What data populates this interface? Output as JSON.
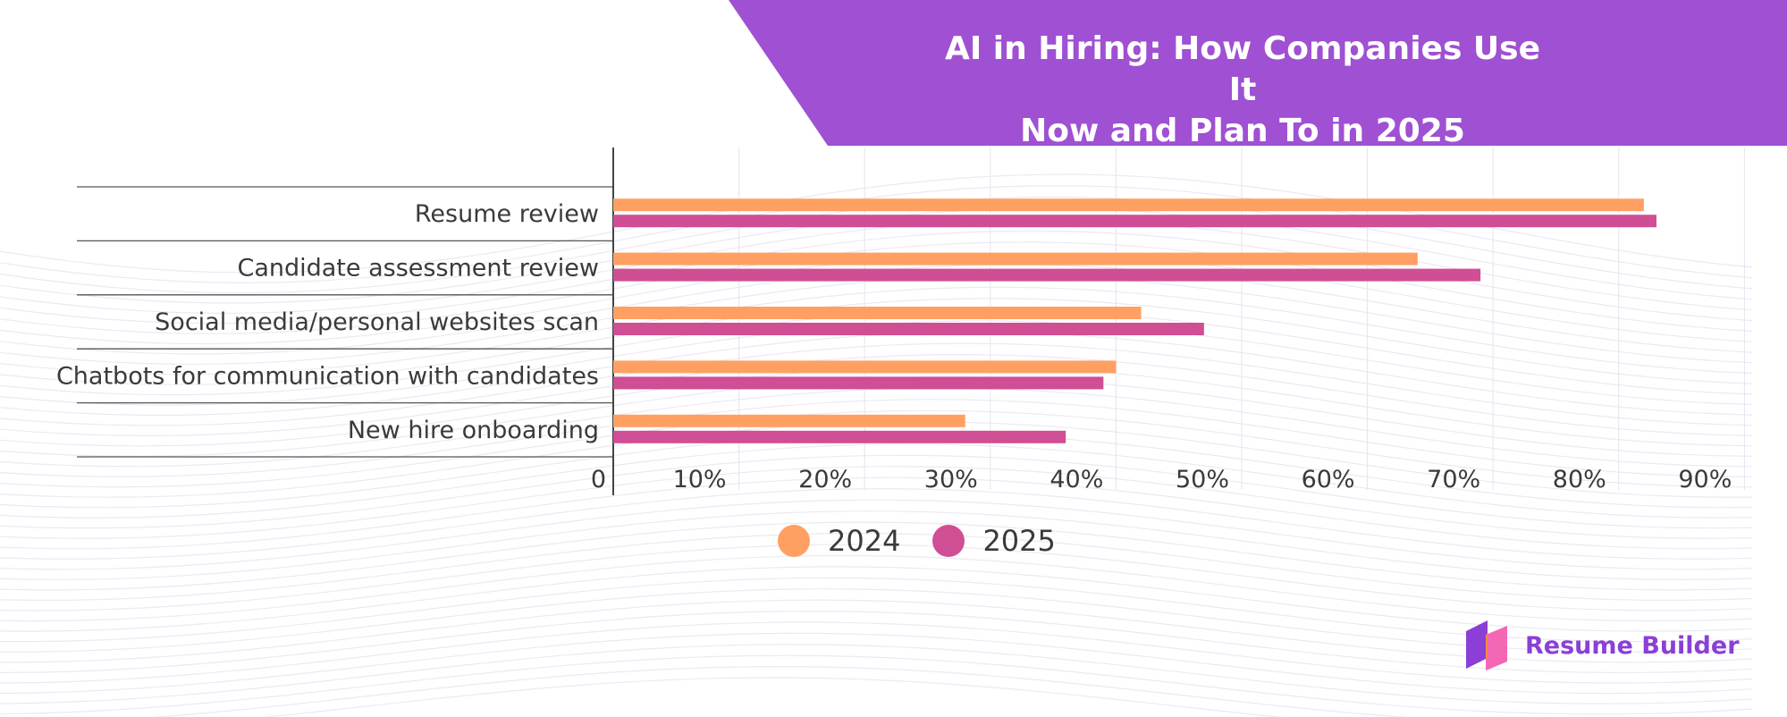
{
  "header": {
    "title_line1": "AI in Hiring: How Companies Use It",
    "title_line2": "Now and Plan To in 2025"
  },
  "colors": {
    "banner": "#9f50d3",
    "series_2024": "#ffa062",
    "series_2025": "#d04e93",
    "brand_text": "#8b3fd6"
  },
  "chart_data": {
    "type": "bar",
    "orientation": "horizontal",
    "title": "AI in Hiring: How Companies Use It Now and Plan To in 2025",
    "xlabel": "",
    "ylabel": "",
    "categories": [
      "Resume review",
      "Candidate assessment review",
      "Social media/personal websites scan",
      "Chatbots for communication with candidates",
      "New hire onboarding"
    ],
    "series": [
      {
        "name": "2024",
        "color": "#ffa062",
        "values": [
          82,
          64,
          42,
          40,
          28
        ]
      },
      {
        "name": "2025",
        "color": "#d04e93",
        "values": [
          83,
          69,
          47,
          39,
          36
        ]
      }
    ],
    "xlim": [
      0,
      90
    ],
    "tick_values": [
      0,
      10,
      20,
      30,
      40,
      50,
      60,
      70,
      80,
      90
    ],
    "tick_labels": [
      "0",
      "10%",
      "20%",
      "30%",
      "40%",
      "50%",
      "60%",
      "70%",
      "80%",
      "90%"
    ],
    "grid": true,
    "legend_position": "bottom"
  },
  "legend": {
    "items": [
      {
        "label": "2024",
        "color": "#ffa062"
      },
      {
        "label": "2025",
        "color": "#d04e93"
      }
    ]
  },
  "brand": {
    "name": "Resume Builder"
  }
}
